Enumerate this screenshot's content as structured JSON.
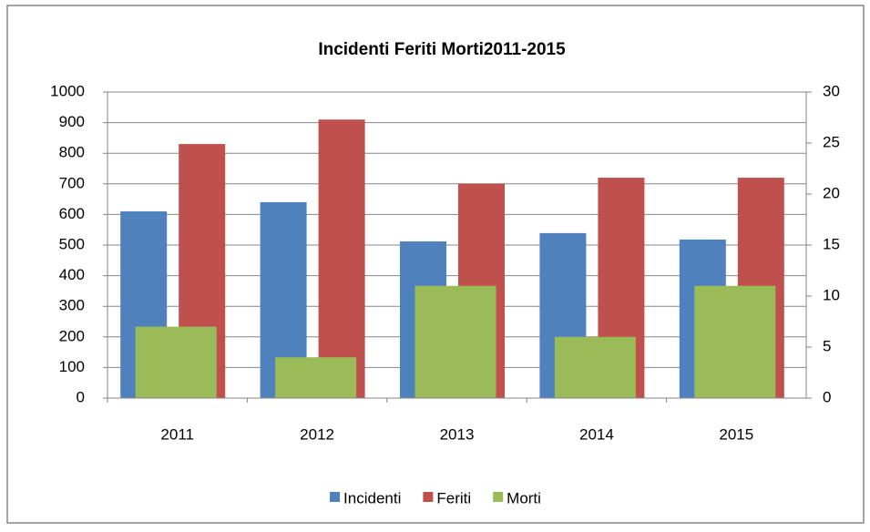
{
  "chart_data": {
    "type": "bar",
    "title": "Incidenti Feriti Morti2011-2015",
    "categories": [
      "2011",
      "2012",
      "2013",
      "2014",
      "2015"
    ],
    "series": [
      {
        "name": "Incidenti",
        "color": "#4f81bd",
        "values": [
          610,
          640,
          512,
          539,
          518
        ]
      },
      {
        "name": "Feriti",
        "color": "#c0504d",
        "values": [
          830,
          910,
          700,
          720,
          720
        ]
      },
      {
        "name": "Morti",
        "color": "#9bbb59",
        "axis": "y2",
        "values": [
          7,
          4,
          11,
          6,
          11
        ]
      }
    ],
    "ylim": [
      0,
      1000
    ],
    "yticks": [
      0,
      100,
      200,
      300,
      400,
      500,
      600,
      700,
      800,
      900,
      1000
    ],
    "y2lim": [
      0,
      30
    ],
    "y2ticks": [
      0,
      5,
      10,
      15,
      20,
      25,
      30
    ],
    "grid": true,
    "legend": "bottom"
  }
}
